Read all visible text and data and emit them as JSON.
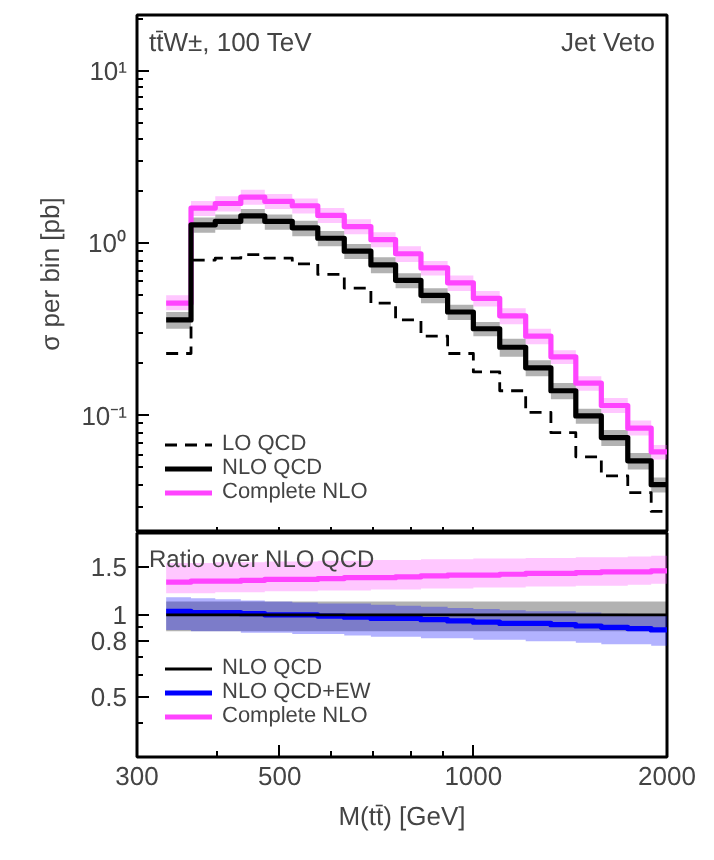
{
  "chart_data": [
    {
      "type": "step",
      "annotations": [
        "tt̄W±, 100 TeV",
        "Jet Veto"
      ],
      "ylabel": "σ per bin [pb]",
      "log": "xy",
      "xlim": [
        300,
        2000
      ],
      "ylim": [
        0.021,
        21
      ],
      "yticks": [
        {
          "value": 10,
          "label": "10¹"
        },
        {
          "value": 1,
          "label": "10⁰"
        },
        {
          "value": 0.1,
          "label": "10⁻¹"
        }
      ],
      "tick_labels": "y",
      "legend": "bottom left",
      "grid": false,
      "x": [
        333,
        364,
        397,
        435,
        474,
        523,
        573,
        630,
        693,
        757,
        829,
        912,
        1000,
        1099,
        1206,
        1320,
        1443,
        1581,
        1738,
        1890,
        2000
      ],
      "series": [
        {
          "name": "LO QCD",
          "color": "#000000",
          "line_style": "dashed",
          "values": [
            0.23,
            0.8,
            0.82,
            0.86,
            0.82,
            0.76,
            0.66,
            0.55,
            0.45,
            0.36,
            0.29,
            0.23,
            0.18,
            0.14,
            0.105,
            0.08,
            0.058,
            0.045,
            0.036,
            0.028,
            0.028
          ]
        },
        {
          "name": "NLO QCD",
          "color": "#000000",
          "line_style": "solid",
          "values": [
            0.36,
            1.28,
            1.34,
            1.44,
            1.34,
            1.23,
            1.07,
            0.9,
            0.75,
            0.61,
            0.5,
            0.4,
            0.32,
            0.25,
            0.19,
            0.14,
            0.1,
            0.075,
            0.055,
            0.04,
            0.04
          ],
          "lower": [
            0.32,
            1.15,
            1.2,
            1.3,
            1.2,
            1.1,
            0.96,
            0.81,
            0.67,
            0.55,
            0.45,
            0.36,
            0.29,
            0.22,
            0.17,
            0.125,
            0.09,
            0.067,
            0.049,
            0.036,
            0.036
          ],
          "upper": [
            0.4,
            1.41,
            1.47,
            1.58,
            1.47,
            1.35,
            1.18,
            0.99,
            0.83,
            0.67,
            0.55,
            0.44,
            0.35,
            0.28,
            0.21,
            0.155,
            0.11,
            0.083,
            0.061,
            0.044,
            0.044
          ]
        },
        {
          "name": "Complete NLO",
          "color": "#ff44ff",
          "line_style": "solid",
          "values": [
            0.45,
            1.6,
            1.7,
            1.85,
            1.75,
            1.65,
            1.45,
            1.25,
            1.05,
            0.87,
            0.72,
            0.59,
            0.48,
            0.38,
            0.29,
            0.22,
            0.155,
            0.115,
            0.085,
            0.062,
            0.062
          ],
          "lower": [
            0.41,
            1.44,
            1.53,
            1.67,
            1.58,
            1.49,
            1.31,
            1.13,
            0.95,
            0.78,
            0.65,
            0.53,
            0.43,
            0.34,
            0.26,
            0.2,
            0.14,
            0.104,
            0.077,
            0.056,
            0.056
          ],
          "upper": [
            0.5,
            1.76,
            1.87,
            2.04,
            1.93,
            1.82,
            1.6,
            1.38,
            1.16,
            0.96,
            0.79,
            0.65,
            0.53,
            0.42,
            0.32,
            0.24,
            0.17,
            0.127,
            0.094,
            0.068,
            0.068
          ]
        }
      ]
    },
    {
      "type": "step",
      "annotations": [
        "Ratio over NLO QCD"
      ],
      "xlabel": "M(tt̄) [GeV]",
      "log": "xy",
      "xlim": [
        300,
        2000
      ],
      "ylim": [
        0.3,
        2.0
      ],
      "xticks": [
        300,
        500,
        1000,
        2000
      ],
      "yticks": [
        0.5,
        0.8,
        1,
        1.5
      ],
      "legend": "bottom left",
      "grid": false,
      "x": [
        333,
        364,
        397,
        435,
        474,
        523,
        573,
        630,
        693,
        757,
        829,
        912,
        1000,
        1099,
        1206,
        1320,
        1443,
        1581,
        1738,
        1890,
        2000
      ],
      "series": [
        {
          "name": "NLO QCD",
          "color": "#000000",
          "line_style": "solid",
          "values": [
            1,
            1,
            1,
            1,
            1,
            1,
            1,
            1,
            1,
            1,
            1,
            1,
            1,
            1,
            1,
            1,
            1,
            1,
            1,
            1,
            1
          ],
          "lower": [
            0.87,
            0.87,
            0.87,
            0.87,
            0.87,
            0.87,
            0.87,
            0.87,
            0.87,
            0.87,
            0.87,
            0.87,
            0.87,
            0.87,
            0.87,
            0.87,
            0.87,
            0.87,
            0.87,
            0.87,
            0.87
          ],
          "upper": [
            1.12,
            1.12,
            1.12,
            1.12,
            1.12,
            1.12,
            1.12,
            1.12,
            1.12,
            1.12,
            1.12,
            1.12,
            1.12,
            1.12,
            1.12,
            1.12,
            1.12,
            1.12,
            1.12,
            1.12,
            1.12
          ]
        },
        {
          "name": "NLO QCD+EW",
          "color": "#0000ff",
          "line_style": "solid",
          "values": [
            1.03,
            1.02,
            1.02,
            1.01,
            1.0,
            1.0,
            0.99,
            0.98,
            0.97,
            0.97,
            0.96,
            0.95,
            0.94,
            0.93,
            0.93,
            0.92,
            0.91,
            0.9,
            0.89,
            0.88,
            0.88
          ],
          "lower": [
            0.88,
            0.87,
            0.87,
            0.86,
            0.86,
            0.85,
            0.85,
            0.84,
            0.83,
            0.83,
            0.82,
            0.82,
            0.81,
            0.81,
            0.8,
            0.8,
            0.79,
            0.78,
            0.78,
            0.77,
            0.77
          ],
          "upper": [
            1.16,
            1.15,
            1.14,
            1.13,
            1.12,
            1.11,
            1.1,
            1.1,
            1.09,
            1.08,
            1.07,
            1.06,
            1.05,
            1.04,
            1.03,
            1.03,
            1.02,
            1.01,
            1.0,
            1.0,
            1.0
          ]
        },
        {
          "name": "Complete NLO",
          "color": "#ff44ff",
          "line_style": "solid",
          "values": [
            1.32,
            1.33,
            1.33,
            1.34,
            1.35,
            1.35,
            1.36,
            1.37,
            1.37,
            1.38,
            1.39,
            1.4,
            1.4,
            1.41,
            1.42,
            1.42,
            1.43,
            1.44,
            1.44,
            1.45,
            1.45
          ],
          "lower": [
            1.2,
            1.2,
            1.21,
            1.21,
            1.22,
            1.22,
            1.23,
            1.23,
            1.24,
            1.24,
            1.25,
            1.25,
            1.26,
            1.26,
            1.27,
            1.27,
            1.28,
            1.28,
            1.29,
            1.3,
            1.3
          ],
          "upper": [
            1.55,
            1.55,
            1.56,
            1.56,
            1.57,
            1.57,
            1.58,
            1.58,
            1.59,
            1.59,
            1.6,
            1.6,
            1.61,
            1.61,
            1.62,
            1.62,
            1.63,
            1.63,
            1.64,
            1.65,
            1.65
          ]
        }
      ]
    }
  ]
}
